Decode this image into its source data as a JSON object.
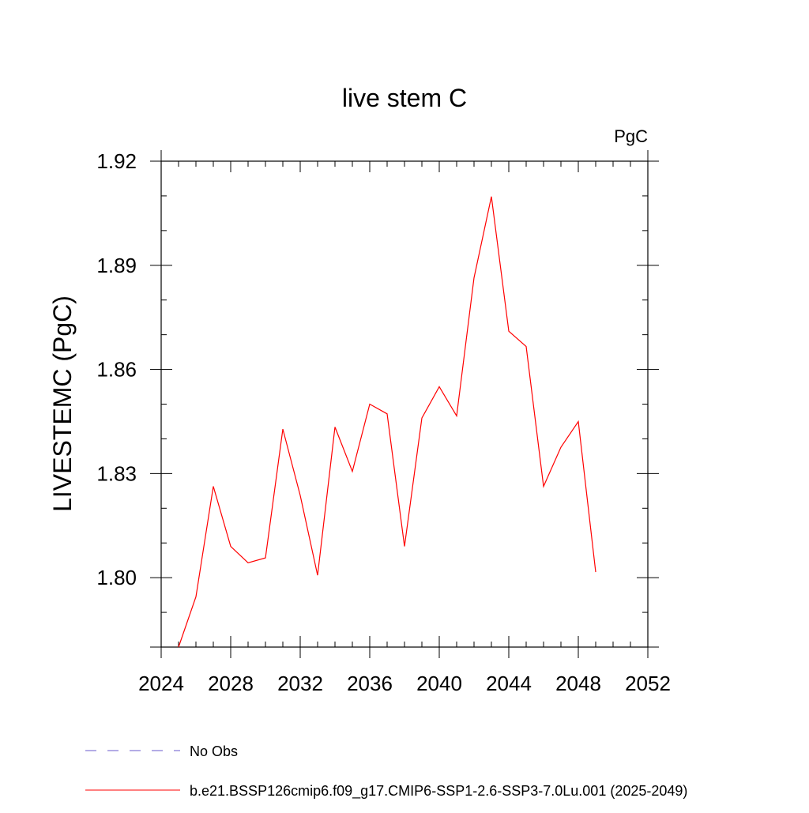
{
  "chart_data": {
    "type": "line",
    "title": "live stem C",
    "units_label": "PgC",
    "ylabel": "LIVESTEMC  (PgC)",
    "xlabel": "",
    "xlim": [
      2024,
      2052
    ],
    "ylim": [
      1.78,
      1.92
    ],
    "xticks": [
      2024,
      2028,
      2032,
      2036,
      2040,
      2044,
      2048,
      2052
    ],
    "xtick_labels": [
      "2024",
      "2028",
      "2032",
      "2036",
      "2040",
      "2044",
      "2048",
      "2052"
    ],
    "yticks": [
      1.8,
      1.83,
      1.86,
      1.89,
      1.92
    ],
    "ytick_labels": [
      "1.80",
      "1.83",
      "1.86",
      "1.89",
      "1.92"
    ],
    "grid": false,
    "legend_placement": "bottom",
    "series": [
      {
        "name": "b.e21.BSSP126cmip6.f09_g17.CMIP6-SSP1-2.6-SSP3-7.0Lu.001 (2025-2049)",
        "color": "#ff0000",
        "x": [
          2025,
          2026,
          2027,
          2028,
          2029,
          2030,
          2031,
          2032,
          2033,
          2034,
          2035,
          2036,
          2037,
          2038,
          2039,
          2040,
          2041,
          2042,
          2043,
          2044,
          2045,
          2046,
          2047,
          2048,
          2049
        ],
        "y": [
          1.78,
          1.7945,
          1.8263,
          1.809,
          1.8043,
          1.8057,
          1.8428,
          1.8237,
          1.8007,
          1.8434,
          1.8306,
          1.85,
          1.8472,
          1.809,
          1.846,
          1.855,
          1.8466,
          1.8864,
          1.9098,
          1.871,
          1.8666,
          1.8263,
          1.8376,
          1.845,
          1.8016
        ]
      }
    ],
    "legend": [
      {
        "label": "No Obs",
        "style": "dashed",
        "color": "#6a5acd"
      },
      {
        "label": "b.e21.BSSP126cmip6.f09_g17.CMIP6-SSP1-2.6-SSP3-7.0Lu.001 (2025-2049)",
        "style": "solid",
        "color": "#ff0000"
      }
    ]
  }
}
